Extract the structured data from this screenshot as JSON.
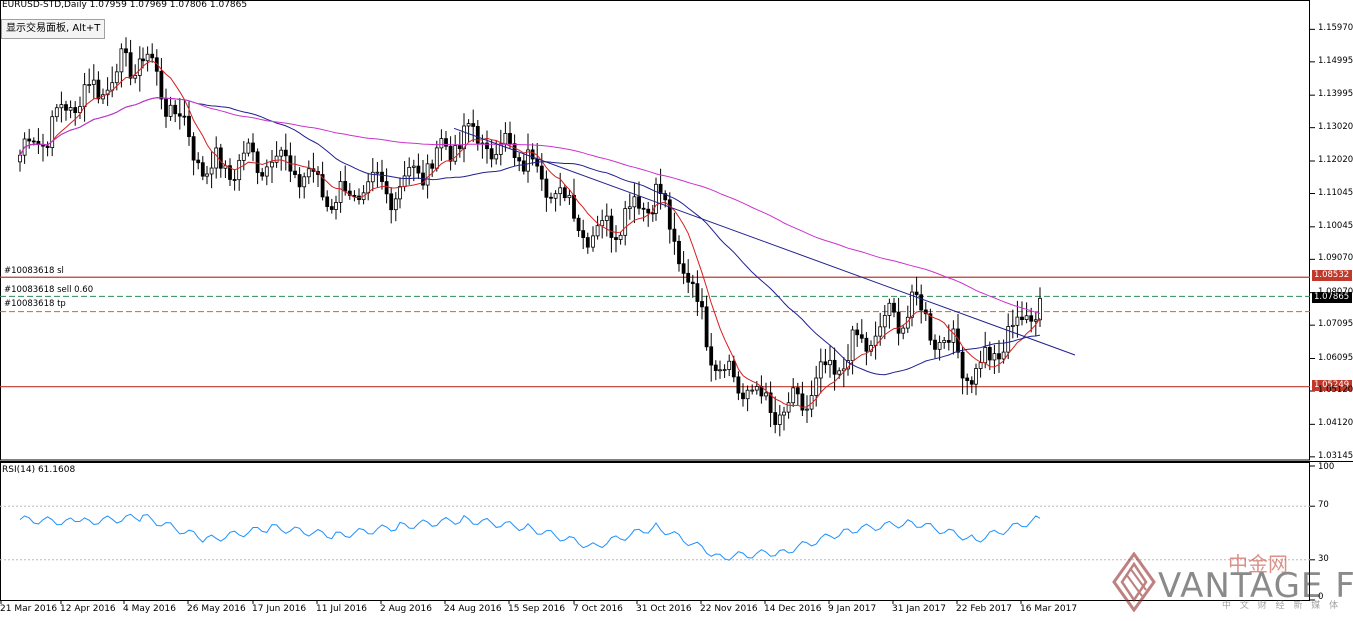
{
  "header": {
    "symbol_line": "EURUSD-STD,Daily  1.07959 1.07969 1.07806 1.07865",
    "trade_panel_button": "显示交易面板, Alt+T"
  },
  "orders": {
    "sl_label": "#10083618 sl",
    "sell_label": "#10083618 sell 0.60",
    "tp_label": "#10083618 tp"
  },
  "price_tags": {
    "upper": "1.08532",
    "current": "1.07865",
    "lower": "1.05249"
  },
  "rsi": {
    "label": "RSI(14) 61.1608"
  },
  "watermark": {
    "brand": "VANTAGE FX",
    "cn_brand": "中金网",
    "cn_sub": "中 文 财 经 新 媒 体"
  },
  "colors": {
    "bull": "#000000",
    "bear": "#000000",
    "ma_fast": "#d62020",
    "ma_mid": "#1f1f8f",
    "ma_slow": "#cc33cc",
    "rsi_line": "#1e90ff",
    "level_red": "#c0392b",
    "level_green": "#2e8b57",
    "level_orange": "#e06020"
  },
  "chart_data": [
    {
      "type": "line",
      "title": "EURUSD-STD,Daily",
      "x_labels": [
        "21 Mar 2016",
        "12 Apr 2016",
        "4 May 2016",
        "26 May 2016",
        "17 Jun 2016",
        "11 Jul 2016",
        "2 Aug 2016",
        "24 Aug 2016",
        "15 Sep 2016",
        "7 Oct 2016",
        "31 Oct 2016",
        "22 Nov 2016",
        "14 Dec 2016",
        "9 Jan 2017",
        "31 Jan 2017",
        "22 Feb 2017",
        "16 Mar 2017"
      ],
      "y_ticks": [
        "1.15970",
        "1.14995",
        "1.13995",
        "1.13020",
        "1.12020",
        "1.11045",
        "1.10045",
        "1.09070",
        "1.08070",
        "1.07095",
        "1.06095",
        "1.05120",
        "1.04120",
        "1.03145"
      ],
      "ylim": [
        1.0305,
        1.1655
      ],
      "series": [
        {
          "name": "",
          "x": [
            "21 Mar 2016",
            "12 Apr 2016",
            "4 May 2016",
            "26 May 2016",
            "17 Jun 2016",
            "11 Jul 2016",
            "2 Aug 2016",
            "24 Aug 2016",
            "15 Sep 2016",
            "7 Oct 2016",
            "31 Oct 2016",
            "22 Nov 2016",
            "14 Dec 2016",
            "9 Jan 2017",
            "31 Jan 2017",
            "22 Feb 2017",
            "16 Mar 2017"
          ],
          "values": [
            1.122,
            1.139,
            1.152,
            1.117,
            1.122,
            1.109,
            1.113,
            1.128,
            1.121,
            1.098,
            1.111,
            1.058,
            1.043,
            1.062,
            1.077,
            1.056,
            1.079
          ]
        }
      ],
      "hlines": [
        1.08532,
        1.07959,
        1.075,
        1.05249
      ]
    },
    {
      "type": "line",
      "title": "RSI(14) 61.1608",
      "y_ticks": [
        "100",
        "70",
        "30",
        "0"
      ],
      "ylim": [
        0,
        100
      ],
      "series": [
        {
          "name": "",
          "x": [
            "21 Mar 2016",
            "12 Apr 2016",
            "4 May 2016",
            "26 May 2016",
            "17 Jun 2016",
            "11 Jul 2016",
            "2 Aug 2016",
            "24 Aug 2016",
            "15 Sep 2016",
            "7 Oct 2016",
            "31 Oct 2016",
            "22 Nov 2016",
            "14 Dec 2016",
            "9 Jan 2017",
            "31 Jan 2017",
            "22 Feb 2017",
            "16 Mar 2017"
          ],
          "values": [
            60,
            58,
            62,
            45,
            54,
            48,
            55,
            60,
            54,
            40,
            55,
            32,
            36,
            52,
            58,
            45,
            61
          ]
        }
      ]
    }
  ]
}
